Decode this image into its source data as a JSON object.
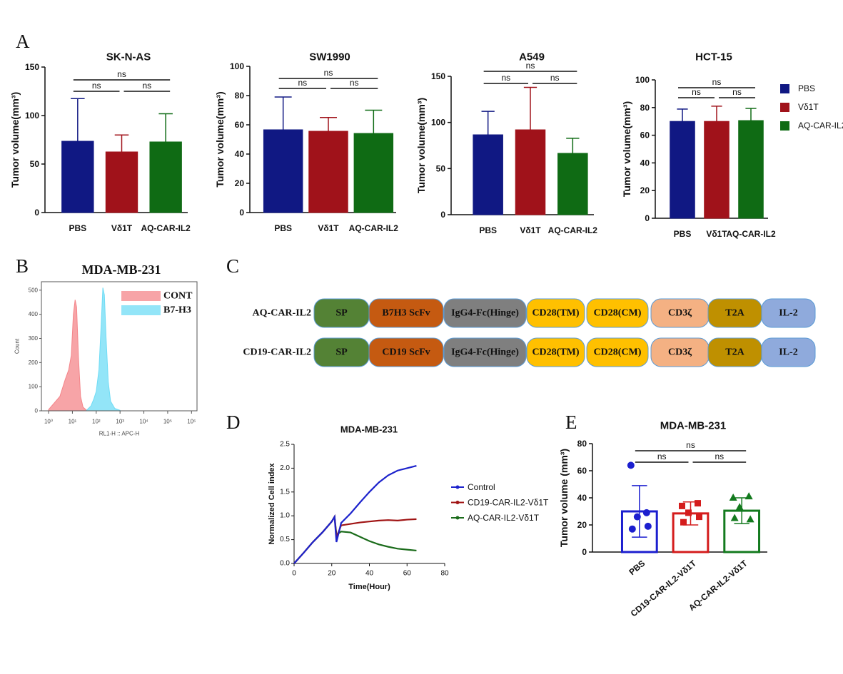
{
  "panel_labels": [
    "A",
    "B",
    "C",
    "D",
    "E"
  ],
  "chart_data": [
    {
      "type": "bar",
      "title": "SK-N-AS",
      "y_label": "Tumor volume(mm³)",
      "categories": [
        "PBS",
        "Vδ1T",
        "AQ-CAR-IL2"
      ],
      "values": [
        73.5,
        62.5,
        72.8
      ],
      "errors": [
        44,
        17.5,
        29
      ],
      "colors": [
        "#101883",
        "#a0121a",
        "#0f6b14"
      ],
      "ylim": [
        0,
        150
      ],
      "yticks": [
        0,
        50,
        100,
        150
      ],
      "significance": [
        "ns",
        "ns",
        "ns"
      ]
    },
    {
      "type": "bar",
      "title": "SW1990",
      "y_label": "Tumor volume(mm³)",
      "categories": [
        "PBS",
        "Vδ1T",
        "AQ-CAR-IL2"
      ],
      "values": [
        56.6,
        55.6,
        54.1
      ],
      "errors": [
        22.4,
        9.4,
        15.9
      ],
      "colors": [
        "#101883",
        "#a0121a",
        "#0f6b14"
      ],
      "ylim": [
        0,
        100
      ],
      "yticks": [
        0,
        20,
        40,
        60,
        80,
        100
      ],
      "significance": [
        "ns",
        "ns",
        "ns"
      ]
    },
    {
      "type": "bar",
      "title": "A549",
      "y_label": "Tumor volume(mm³)",
      "categories": [
        "PBS",
        "Vδ1T",
        "AQ-CAR-IL2"
      ],
      "values": [
        86.6,
        92,
        66.5
      ],
      "errors": [
        25.4,
        46,
        16.3
      ],
      "colors": [
        "#101883",
        "#a0121a",
        "#0f6b14"
      ],
      "ylim": [
        0,
        150
      ],
      "yticks": [
        0,
        50,
        100,
        150
      ],
      "significance": [
        "ns",
        "ns",
        "ns"
      ]
    },
    {
      "type": "bar",
      "title": "HCT-15",
      "y_label": "Tumor volume(mm³)",
      "categories": [
        "PBS",
        "Vδ1T",
        "AQ-CAR-IL2"
      ],
      "values": [
        70,
        70,
        70.6
      ],
      "errors": [
        8.9,
        11,
        8.8
      ],
      "colors": [
        "#101883",
        "#a0121a",
        "#0f6b14"
      ],
      "ylim": [
        0,
        100
      ],
      "yticks": [
        0,
        20,
        40,
        60,
        80,
        100
      ],
      "significance": [
        "ns",
        "ns",
        "ns"
      ],
      "legend": true
    },
    {
      "type": "area",
      "title": "MDA-MB-231",
      "x_label": "RL1-H :: APC-H",
      "y_label": "Count",
      "log_x": true,
      "xlim": [
        0.5,
        1700000
      ],
      "xticks": [
        {
          "value": 1,
          "label": "10⁰"
        },
        {
          "value": 10,
          "label": "10¹"
        },
        {
          "value": 100,
          "label": "10²"
        },
        {
          "value": 1000,
          "label": "10³"
        },
        {
          "value": 10000,
          "label": "10⁴"
        },
        {
          "value": 100000,
          "label": "10⁵"
        },
        {
          "value": 1000000,
          "label": "10⁶"
        }
      ],
      "ylim": [
        0,
        535
      ],
      "yticks": [
        0,
        100,
        200,
        300,
        400,
        500
      ],
      "series": [
        {
          "name": "CONT",
          "color": "#f4858a",
          "x": [
            1,
            3,
            5,
            7,
            9,
            11,
            13,
            15,
            18,
            22,
            28,
            40
          ],
          "values": [
            5,
            60,
            130,
            170,
            230,
            400,
            460,
            430,
            220,
            60,
            15,
            2
          ]
        },
        {
          "name": "B7-H3",
          "color": "#6fdcf5",
          "x": [
            40,
            60,
            80,
            100,
            130,
            160,
            190,
            220,
            260,
            320,
            400,
            600,
            1000
          ],
          "values": [
            3,
            20,
            50,
            80,
            170,
            350,
            510,
            480,
            300,
            120,
            40,
            10,
            2
          ]
        }
      ]
    },
    {
      "type": "line",
      "title": "MDA-MB-231",
      "x_label": "Time(Hour)",
      "y_label": "Normalized Cell index",
      "xlim": [
        0,
        80
      ],
      "xticks": [
        0,
        20,
        40,
        60,
        80
      ],
      "ylim": [
        0,
        2.5
      ],
      "yticks": [
        {
          "value": 0,
          "label": "0.0"
        },
        0.5,
        {
          "value": 1,
          "label": "1.0"
        },
        1.5,
        {
          "value": 2,
          "label": "2.0"
        },
        2.5
      ],
      "x": [
        0,
        5,
        10,
        15,
        20,
        21.5,
        22.5,
        25,
        30,
        35,
        40,
        45,
        50,
        55,
        60,
        65
      ],
      "series": [
        {
          "name": "Control",
          "color": "#1c22cc",
          "values": [
            0,
            0.22,
            0.45,
            0.65,
            0.88,
            0.98,
            0.45,
            0.85,
            1.05,
            1.28,
            1.5,
            1.7,
            1.85,
            1.95,
            2.0,
            2.05
          ]
        },
        {
          "name": "CD19-CAR-IL2-Vδ1T",
          "color": "#a01414",
          "values": [
            0,
            0.22,
            0.45,
            0.65,
            0.88,
            0.98,
            0.55,
            0.8,
            0.83,
            0.86,
            0.88,
            0.9,
            0.91,
            0.9,
            0.92,
            0.93
          ]
        },
        {
          "name": "AQ-CAR-IL2-Vδ1T",
          "color": "#1a6b1a",
          "values": [
            0,
            0.22,
            0.45,
            0.65,
            0.88,
            0.98,
            0.6,
            0.67,
            0.65,
            0.56,
            0.47,
            0.4,
            0.35,
            0.31,
            0.29,
            0.27
          ]
        }
      ]
    },
    {
      "type": "bar",
      "title": "MDA-MB-231",
      "y_label": "Tumor volume (mm³)",
      "categories": [
        "PBS",
        "CD19-CAR-IL2-Vδ1T",
        "AQ-CAR-IL2-Vδ1T"
      ],
      "values": [
        30,
        28.5,
        30.5
      ],
      "errors": [
        19,
        8.5,
        9.5
      ],
      "error_style": "both",
      "colors": [
        "#1c1fcf",
        "#d41c1c",
        "#137a1e"
      ],
      "bar_fill": "none",
      "points": [
        [
          64,
          29,
          26,
          19,
          17
        ],
        [
          34,
          36,
          29,
          26,
          22
        ],
        [
          40,
          41,
          33,
          24,
          25
        ]
      ],
      "markers": [
        "circle",
        "square",
        "triangle"
      ],
      "ylim": [
        0,
        80
      ],
      "yticks": [
        0,
        20,
        40,
        60,
        80
      ],
      "significance": [
        "ns",
        "ns",
        "ns"
      ]
    }
  ],
  "diagram": {
    "constructs": [
      {
        "name": "AQ-CAR-IL2",
        "domains": [
          {
            "label": "SP",
            "color": "#548235"
          },
          {
            "label": "B7H3 ScFv",
            "color": "#c55a11"
          },
          {
            "label": "IgG4-Fc(Hinge)",
            "color": "#7f7f7f"
          },
          {
            "label": "CD28(TM)",
            "color": "#ffc000"
          },
          {
            "label": "CD28(CM)",
            "color": "#ffc000"
          },
          {
            "label": "CD3ζ",
            "color": "#f4b183"
          },
          {
            "label": "T2A",
            "color": "#bf9000"
          },
          {
            "label": "IL-2",
            "color": "#8faadc"
          }
        ]
      },
      {
        "name": "CD19-CAR-IL2",
        "domains": [
          {
            "label": "SP",
            "color": "#548235"
          },
          {
            "label": "CD19 ScFv",
            "color": "#c55a11"
          },
          {
            "label": "IgG4-Fc(Hinge)",
            "color": "#7f7f7f"
          },
          {
            "label": "CD28(TM)",
            "color": "#ffc000"
          },
          {
            "label": "CD28(CM)",
            "color": "#ffc000"
          },
          {
            "label": "CD3ζ",
            "color": "#f4b183"
          },
          {
            "label": "T2A",
            "color": "#bf9000"
          },
          {
            "label": "IL-2",
            "color": "#8faadc"
          }
        ]
      }
    ]
  }
}
